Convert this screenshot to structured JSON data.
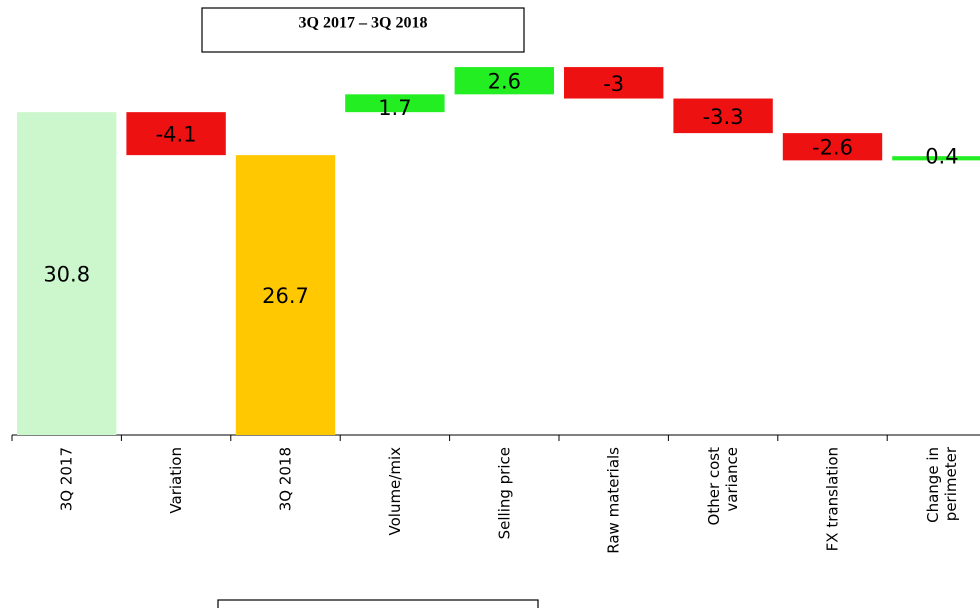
{
  "chart_data": {
    "type": "waterfall",
    "title": "3Q 2017 – 3Q 2018",
    "categories": [
      "3Q 2017",
      "Variation",
      "3Q 2018",
      "Volume/mix",
      "Selling price",
      "Raw materials",
      "Other cost\nvariance",
      "FX translation",
      "Change in\nperimeter"
    ],
    "values": [
      30.8,
      -4.1,
      26.7,
      1.7,
      2.6,
      -3.0,
      -3.3,
      -2.6,
      0.4
    ],
    "measures": [
      "total",
      "delta",
      "total",
      "relative",
      "relative",
      "relative",
      "relative",
      "relative",
      "relative"
    ],
    "colors": [
      "#ccf7cc",
      "#ee1111",
      "#ffc800",
      "#22ee22",
      "#22ee22",
      "#ee1111",
      "#ee1111",
      "#ee1111",
      "#22ee22"
    ],
    "ylim": [
      0,
      41.5
    ]
  }
}
